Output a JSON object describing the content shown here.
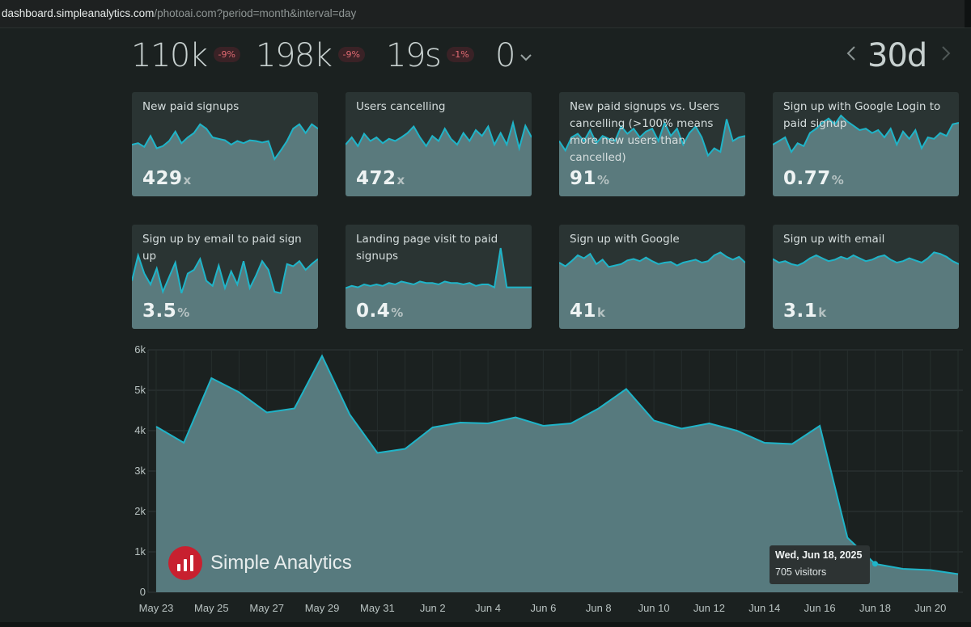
{
  "browser": {
    "url_host": "dashboard.simpleanalytics.com",
    "url_path": "/photoai.com?period=month&interval=day"
  },
  "kpis": [
    {
      "value": "110k",
      "delta": "-9%"
    },
    {
      "value": "198k",
      "delta": "-9%"
    },
    {
      "value": "19s",
      "delta": "-1%"
    },
    {
      "value": "0",
      "delta": ""
    }
  ],
  "period": {
    "value": "30d",
    "prev": "‹",
    "next": "›"
  },
  "goals": [
    {
      "title": "New paid signups",
      "value": "429",
      "unit": "x",
      "spark": [
        0.5,
        0.52,
        0.47,
        0.62,
        0.45,
        0.48,
        0.55,
        0.68,
        0.52,
        0.6,
        0.66,
        0.78,
        0.72,
        0.6,
        0.58,
        0.56,
        0.5,
        0.55,
        0.52,
        0.56,
        0.55,
        0.53,
        0.55,
        0.3,
        0.42,
        0.55,
        0.72,
        0.78,
        0.66,
        0.78,
        0.72
      ]
    },
    {
      "title": "Users cancelling",
      "value": "472",
      "unit": "x",
      "spark": [
        0.5,
        0.6,
        0.48,
        0.65,
        0.55,
        0.6,
        0.52,
        0.58,
        0.55,
        0.6,
        0.66,
        0.75,
        0.6,
        0.48,
        0.62,
        0.55,
        0.72,
        0.58,
        0.5,
        0.66,
        0.55,
        0.7,
        0.62,
        0.75,
        0.5,
        0.66,
        0.5,
        0.8,
        0.45,
        0.76,
        0.6
      ]
    },
    {
      "title": "New paid signups vs. Users cancelling (>100% means more new users than cancelled)",
      "value": "91",
      "unit": "%",
      "spark": [
        0.55,
        0.42,
        0.6,
        0.65,
        0.55,
        0.7,
        0.52,
        0.62,
        0.58,
        0.55,
        0.75,
        0.65,
        0.72,
        0.6,
        0.68,
        0.72,
        0.55,
        0.8,
        0.62,
        0.72,
        0.5,
        0.66,
        0.75,
        0.6,
        0.35,
        0.45,
        0.4,
        0.85,
        0.55,
        0.6,
        0.62
      ]
    },
    {
      "title": "Sign up with Google Login to paid signup",
      "value": "0.77",
      "unit": "%",
      "spark": [
        0.5,
        0.55,
        0.6,
        0.4,
        0.52,
        0.48,
        0.66,
        0.72,
        0.8,
        0.86,
        0.78,
        0.9,
        0.82,
        0.76,
        0.7,
        0.72,
        0.66,
        0.7,
        0.6,
        0.72,
        0.5,
        0.68,
        0.58,
        0.7,
        0.45,
        0.6,
        0.58,
        0.66,
        0.62,
        0.78,
        0.8
      ]
    }
  ],
  "goals2": [
    {
      "title": "Sign up by email to paid sign up",
      "value": "3.5",
      "unit": "%",
      "spark": [
        0.45,
        0.8,
        0.55,
        0.4,
        0.62,
        0.3,
        0.5,
        0.7,
        0.28,
        0.55,
        0.6,
        0.75,
        0.45,
        0.38,
        0.66,
        0.35,
        0.58,
        0.4,
        0.72,
        0.35,
        0.52,
        0.72,
        0.6,
        0.3,
        0.28,
        0.68,
        0.65,
        0.72,
        0.6,
        0.68,
        0.75
      ]
    },
    {
      "title": "Landing page visit to paid signups",
      "value": "0.4",
      "unit": "%",
      "spark": [
        0.35,
        0.38,
        0.36,
        0.4,
        0.38,
        0.4,
        0.38,
        0.42,
        0.4,
        0.44,
        0.42,
        0.4,
        0.44,
        0.42,
        0.42,
        0.4,
        0.44,
        0.42,
        0.42,
        0.4,
        0.42,
        0.38,
        0.4,
        0.4,
        0.36,
        0.9,
        0.36,
        0.36,
        0.36,
        0.36,
        0.36
      ]
    },
    {
      "title": "Sign up with Google",
      "value": "41",
      "unit": "k",
      "spark": [
        0.7,
        0.65,
        0.72,
        0.8,
        0.76,
        0.82,
        0.68,
        0.74,
        0.64,
        0.66,
        0.68,
        0.73,
        0.75,
        0.72,
        0.77,
        0.72,
        0.68,
        0.7,
        0.71,
        0.66,
        0.7,
        0.72,
        0.74,
        0.7,
        0.72,
        0.8,
        0.84,
        0.78,
        0.74,
        0.78,
        0.7
      ]
    },
    {
      "title": "Sign up with email",
      "value": "3.1",
      "unit": "k",
      "spark": [
        0.75,
        0.7,
        0.72,
        0.68,
        0.66,
        0.7,
        0.76,
        0.8,
        0.76,
        0.72,
        0.74,
        0.78,
        0.75,
        0.8,
        0.76,
        0.72,
        0.74,
        0.78,
        0.8,
        0.74,
        0.7,
        0.72,
        0.76,
        0.73,
        0.7,
        0.76,
        0.84,
        0.82,
        0.78,
        0.72,
        0.68
      ]
    }
  ],
  "chart_data": {
    "type": "area",
    "title": "",
    "xlabel": "",
    "ylabel": "",
    "ylim": [
      0,
      6000
    ],
    "yticks": [
      "0",
      "1k",
      "2k",
      "3k",
      "4k",
      "5k",
      "6k"
    ],
    "x": [
      "May 23",
      "May 24",
      "May 25",
      "May 26",
      "May 27",
      "May 28",
      "May 29",
      "May 30",
      "May 31",
      "Jun 1",
      "Jun 2",
      "Jun 3",
      "Jun 4",
      "Jun 5",
      "Jun 6",
      "Jun 7",
      "Jun 8",
      "Jun 9",
      "Jun 10",
      "Jun 11",
      "Jun 12",
      "Jun 13",
      "Jun 14",
      "Jun 15",
      "Jun 16",
      "Jun 17",
      "Jun 18",
      "Jun 19",
      "Jun 20",
      "Jun 21"
    ],
    "xtick_labels": [
      "May 23",
      "May 25",
      "May 27",
      "May 29",
      "May 31",
      "Jun 2",
      "Jun 4",
      "Jun 6",
      "Jun 8",
      "Jun 10",
      "Jun 12",
      "Jun 14",
      "Jun 16",
      "Jun 18",
      "Jun 20"
    ],
    "series": [
      {
        "name": "visitors",
        "values": [
          4100,
          3700,
          5300,
          4950,
          4450,
          4550,
          5850,
          4400,
          3450,
          3550,
          4080,
          4200,
          4180,
          4330,
          4120,
          4180,
          4550,
          5030,
          4250,
          4050,
          4180,
          4000,
          3700,
          3670,
          4120,
          1350,
          705,
          580,
          550,
          450
        ]
      }
    ],
    "tooltip": {
      "date": "Wed, Jun 18, 2025",
      "text": "705 visitors"
    },
    "colors": {
      "line": "#1fb4c8",
      "fill": "#577a7e",
      "grid": "#2f3837",
      "tick": "#b9c3c2"
    }
  },
  "brand": {
    "name": "Simple Analytics"
  }
}
